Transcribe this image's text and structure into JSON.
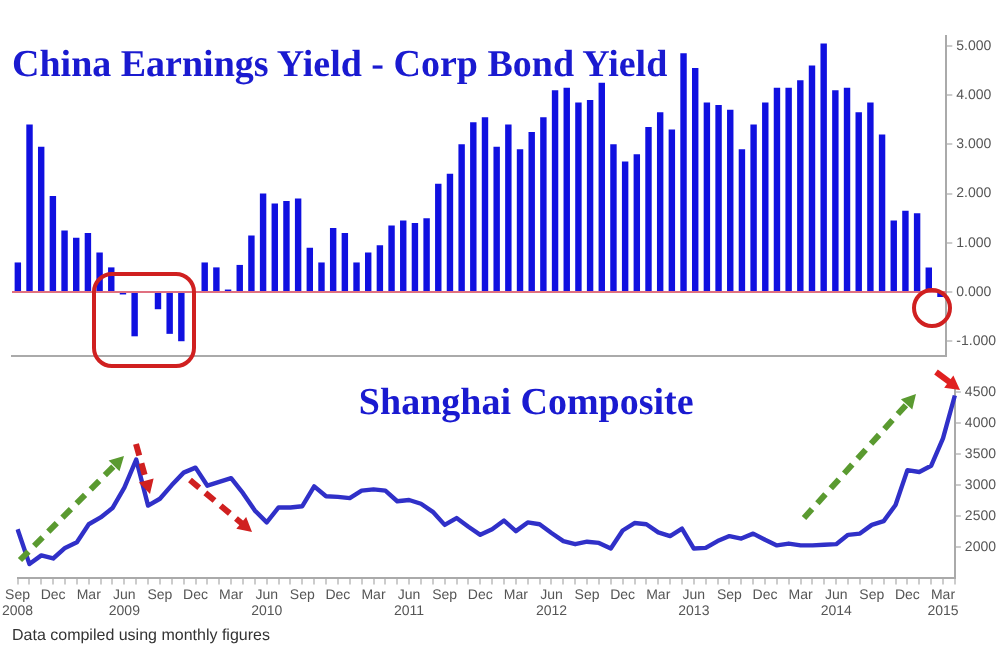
{
  "chart_data": [
    {
      "type": "bar",
      "title": "China Earnings Yield - Corp Bond Yield",
      "categories": [
        null,
        null,
        null,
        null,
        null,
        null,
        null,
        null,
        null,
        null,
        null,
        null,
        null,
        null,
        null,
        null,
        null,
        null,
        null,
        null,
        null,
        null,
        null,
        null,
        null,
        null,
        null,
        null,
        null,
        null,
        null,
        null,
        null,
        null,
        null,
        null,
        null,
        null,
        null,
        null,
        null,
        null,
        null,
        null,
        null,
        null,
        null,
        null,
        null,
        null,
        null,
        null,
        null,
        null,
        null,
        null,
        null,
        null,
        null,
        null,
        null,
        null,
        null,
        null,
        null,
        null,
        null,
        null,
        null,
        null,
        null,
        null,
        null,
        null,
        null,
        null,
        null,
        null,
        null,
        null
      ],
      "values": [
        0.6,
        3.4,
        2.95,
        1.95,
        1.25,
        1.1,
        1.2,
        0.8,
        0.5,
        -0.05,
        -0.9,
        0,
        -0.35,
        -0.85,
        -1.0,
        0,
        0.6,
        0.5,
        0.05,
        0.55,
        1.15,
        2.0,
        1.8,
        1.85,
        1.9,
        0.9,
        0.6,
        1.3,
        1.2,
        0.6,
        0.8,
        0.95,
        1.35,
        1.45,
        1.4,
        1.5,
        2.2,
        2.4,
        3.0,
        3.45,
        3.55,
        2.95,
        3.4,
        2.9,
        3.25,
        3.55,
        4.1,
        4.15,
        3.85,
        3.9,
        4.25,
        3.0,
        2.65,
        2.8,
        3.35,
        3.65,
        3.3,
        4.85,
        4.55,
        3.85,
        3.8,
        3.7,
        2.9,
        3.4,
        3.85,
        4.15,
        4.15,
        4.3,
        4.6,
        5.05,
        4.1,
        4.15,
        3.65,
        3.85,
        3.2,
        1.45,
        1.65,
        1.6,
        0.5,
        -0.1
      ],
      "color": "#1010e0",
      "ylim": [
        -1.3,
        5.2
      ],
      "yticks": [
        {
          "value": -1,
          "label": "-1.000"
        },
        {
          "value": 0,
          "label": "0.000"
        },
        {
          "value": 1,
          "label": "1.000"
        },
        {
          "value": 2,
          "label": "2.000"
        },
        {
          "value": 3,
          "label": "3.000"
        },
        {
          "value": 4,
          "label": "4.000"
        },
        {
          "value": 5,
          "label": "5.000"
        }
      ],
      "ref_lines": [
        {
          "axis": "y",
          "value": 0,
          "color": "#e07080"
        }
      ],
      "tick_labels": "y",
      "grid": false,
      "legend": false
    },
    {
      "type": "line",
      "title": "Shanghai Composite",
      "categories": [
        "Sep\n2008",
        null,
        null,
        "Dec",
        null,
        null,
        "Mar",
        null,
        null,
        "Jun\n2009",
        null,
        null,
        "Sep",
        null,
        null,
        "Dec",
        null,
        null,
        "Mar",
        null,
        null,
        "Jun\n2010",
        null,
        null,
        "Sep",
        null,
        null,
        "Dec",
        null,
        null,
        "Mar",
        null,
        null,
        "Jun\n2011",
        null,
        null,
        "Sep",
        null,
        null,
        "Dec",
        null,
        null,
        "Mar",
        null,
        null,
        "Jun\n2012",
        null,
        null,
        "Sep",
        null,
        null,
        "Dec",
        null,
        null,
        "Mar",
        null,
        null,
        "Jun\n2013",
        null,
        null,
        "Sep",
        null,
        null,
        "Dec",
        null,
        null,
        "Mar",
        null,
        null,
        "Jun\n2014",
        null,
        null,
        "Sep",
        null,
        null,
        "Dec",
        null,
        null,
        "Mar\n2015",
        null
      ],
      "values": [
        2290,
        1730,
        1870,
        1820,
        1990,
        2080,
        2370,
        2480,
        2630,
        2960,
        3410,
        2670,
        2780,
        3000,
        3200,
        3280,
        2990,
        3050,
        3110,
        2870,
        2590,
        2400,
        2640,
        2640,
        2660,
        2980,
        2820,
        2810,
        2790,
        2910,
        2930,
        2910,
        2740,
        2760,
        2700,
        2570,
        2360,
        2470,
        2330,
        2200,
        2290,
        2430,
        2260,
        2400,
        2370,
        2230,
        2100,
        2050,
        2090,
        2070,
        1980,
        2270,
        2390,
        2370,
        2240,
        2180,
        2300,
        1980,
        1990,
        2100,
        2180,
        2140,
        2220,
        2120,
        2030,
        2060,
        2030,
        2030,
        2040,
        2050,
        2200,
        2220,
        2360,
        2420,
        2680,
        3240,
        3210,
        3310,
        3750,
        4440
      ],
      "color": "#3030c8",
      "ylim": [
        1500,
        4650
      ],
      "yticks": [
        2000,
        2500,
        3000,
        3500,
        4000,
        4500
      ],
      "marker": "none",
      "line_style": "solid",
      "grid": false,
      "legend": false,
      "annotations": [
        "Data compiled using monthly figures"
      ]
    }
  ]
}
